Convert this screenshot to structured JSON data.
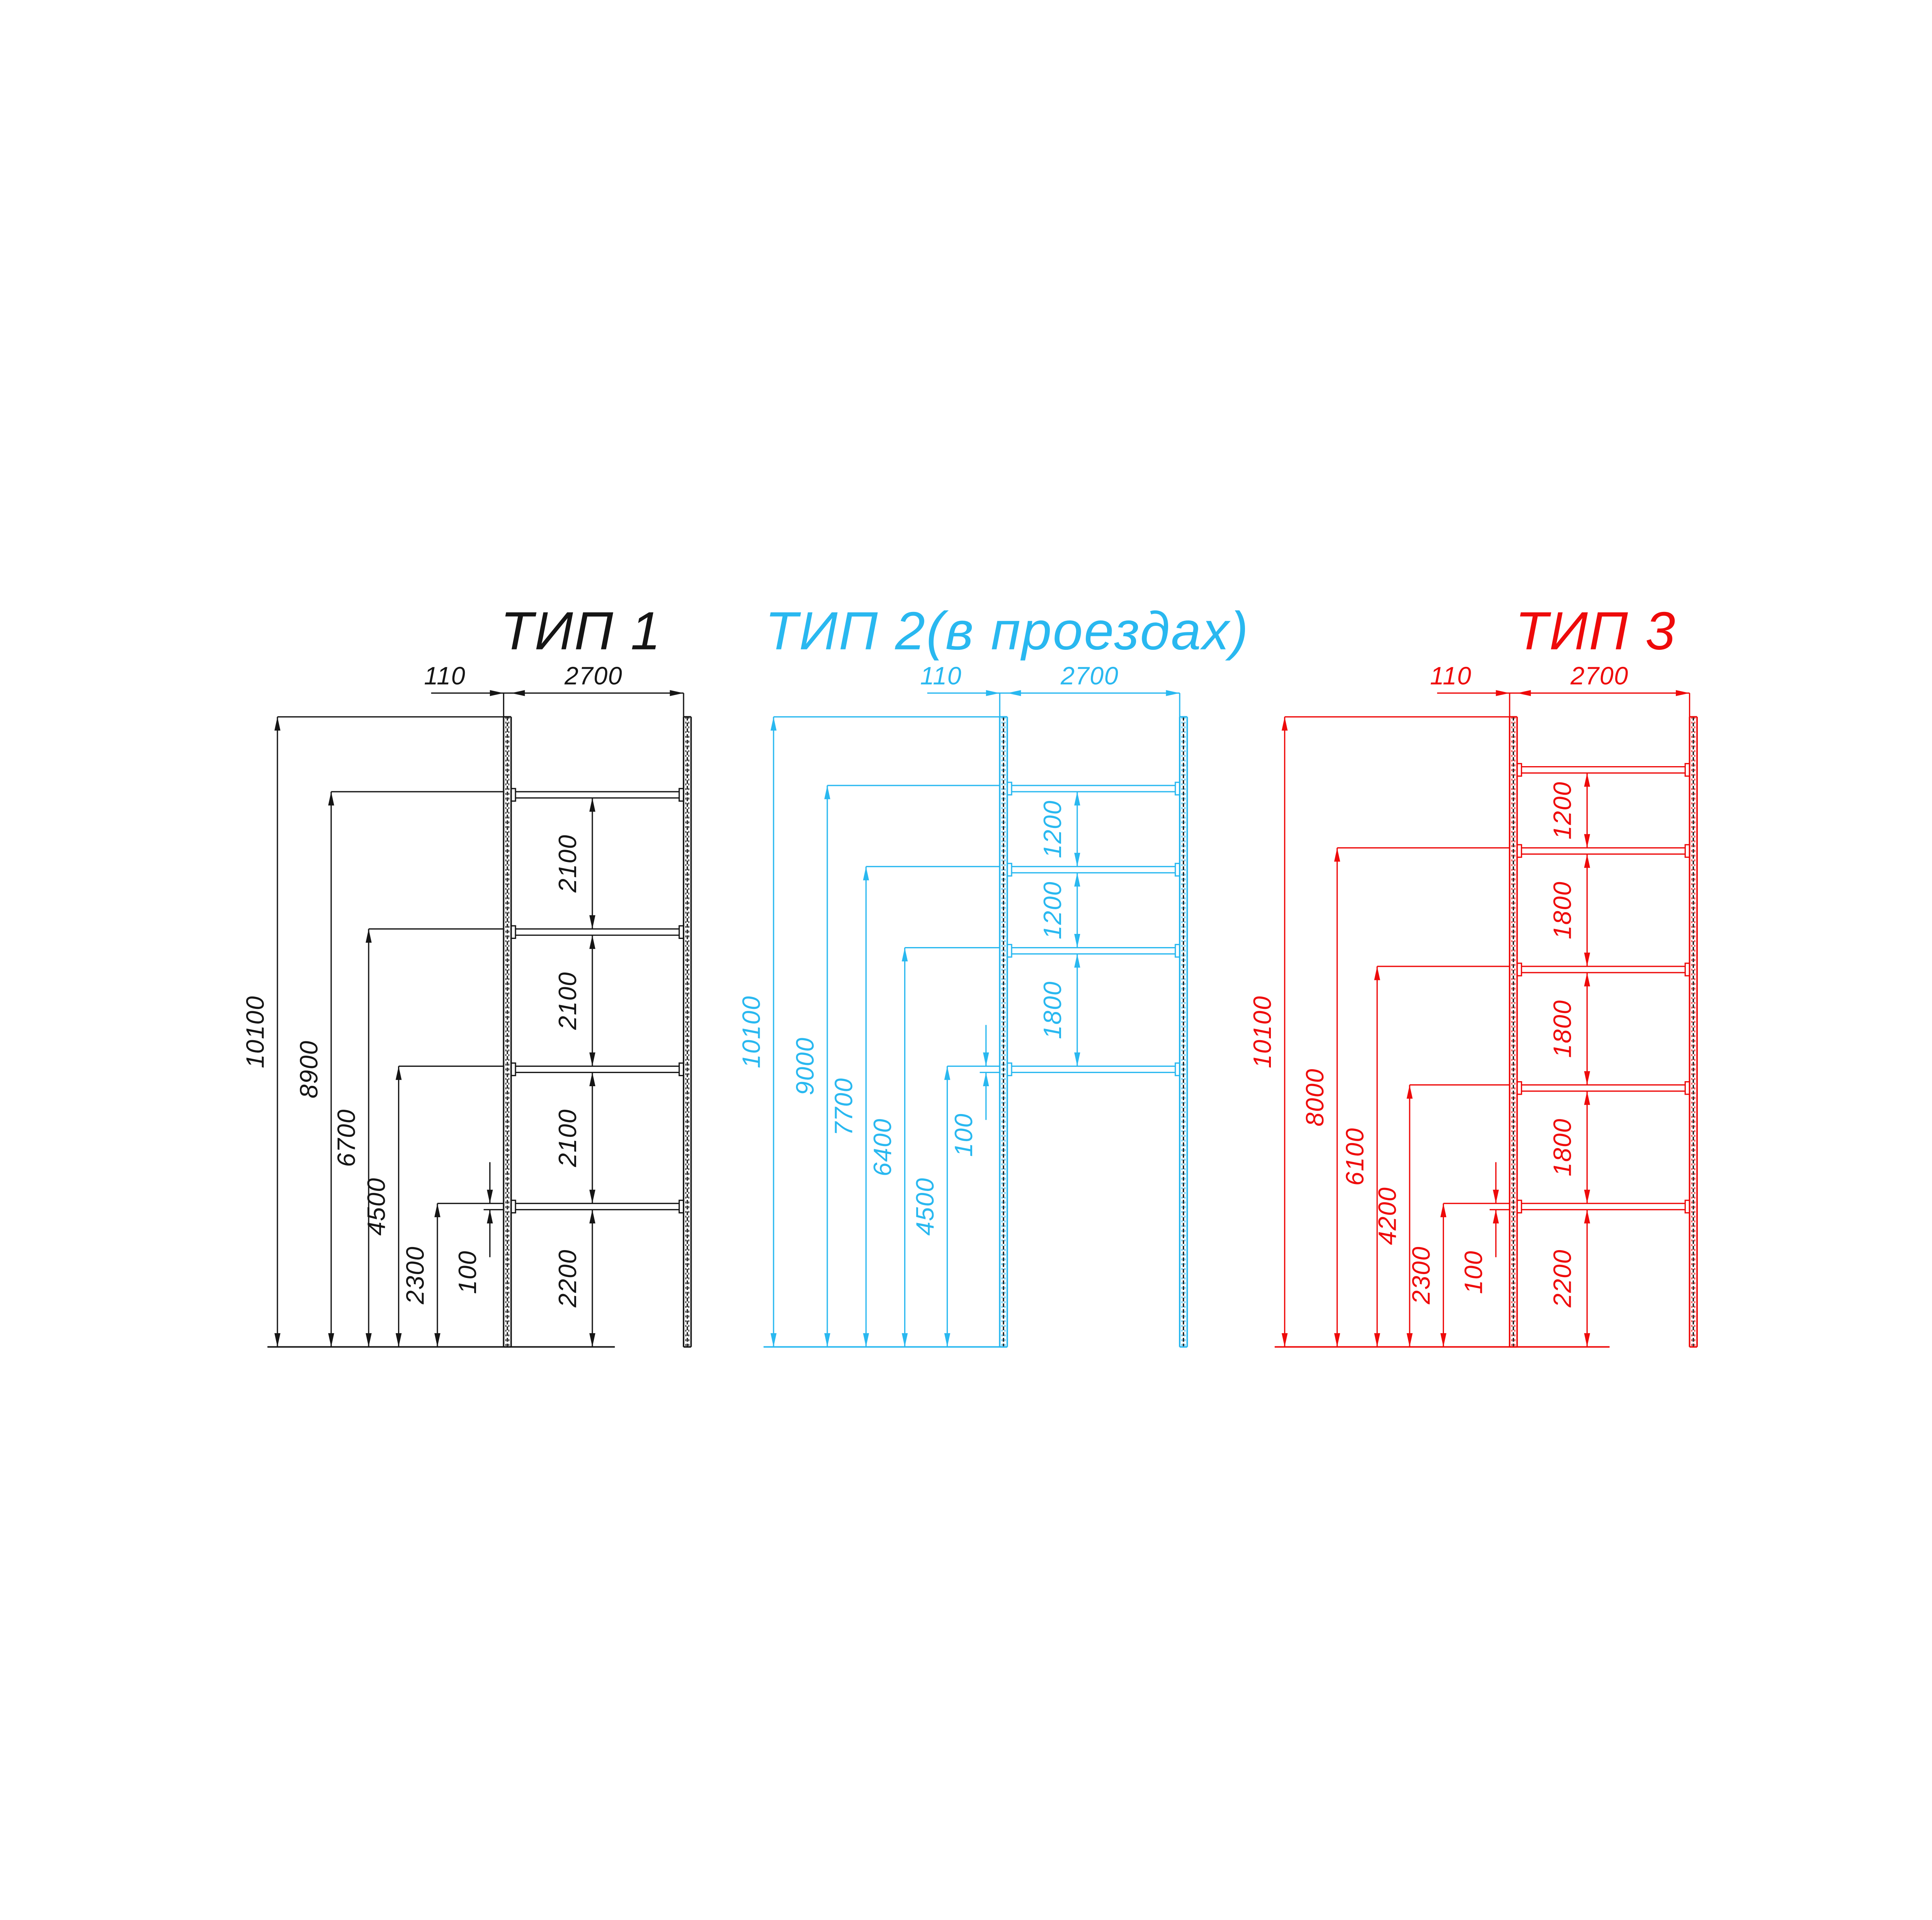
{
  "page": {
    "background": "#ffffff"
  },
  "drawings": [
    {
      "id": "tip1",
      "title": "ТИП 1",
      "accent_color": "#151515",
      "top_dims": {
        "post_width": "110",
        "bay_width": "2700"
      },
      "post_height_mm": 10100,
      "post_width_mm": 110,
      "bay_width_mm": 2700,
      "beam_thickness_mm": 100,
      "beam_levels_mm": [
        8900,
        6700,
        4500,
        2300
      ],
      "left_dims": [
        {
          "label": "10100",
          "mm": 10100
        },
        {
          "label": "8900",
          "mm": 8900
        },
        {
          "label": "6700",
          "mm": 6700
        },
        {
          "label": "4500",
          "mm": 4500
        },
        {
          "label": "2300",
          "mm": 2300
        }
      ],
      "right_dims": [
        {
          "label": "2100",
          "top_mm": 8800,
          "bottom_mm": 6700
        },
        {
          "label": "2100",
          "top_mm": 6600,
          "bottom_mm": 4500
        },
        {
          "label": "2100",
          "top_mm": 4400,
          "bottom_mm": 2300
        },
        {
          "label": "2200",
          "top_mm": 2200,
          "bottom_mm": 0
        }
      ],
      "beam_thickness_dim": {
        "label": "100",
        "at_level_mm": 2300
      }
    },
    {
      "id": "tip2",
      "title": "ТИП 2(в проездах)",
      "accent_color": "#29B8F0",
      "top_dims": {
        "post_width": "110",
        "bay_width": "2700"
      },
      "post_height_mm": 10100,
      "post_width_mm": 110,
      "bay_width_mm": 2700,
      "beam_thickness_mm": 100,
      "beam_levels_mm": [
        9000,
        7700,
        6400,
        4500
      ],
      "left_dims": [
        {
          "label": "10100",
          "mm": 10100
        },
        {
          "label": "9000",
          "mm": 9000
        },
        {
          "label": "7700",
          "mm": 7700
        },
        {
          "label": "6400",
          "mm": 6400
        },
        {
          "label": "4500",
          "mm": 4500
        }
      ],
      "right_dims": [
        {
          "label": "1200",
          "top_mm": 8900,
          "bottom_mm": 7700
        },
        {
          "label": "1200",
          "top_mm": 7600,
          "bottom_mm": 6400
        },
        {
          "label": "1800",
          "top_mm": 6300,
          "bottom_mm": 4500
        }
      ],
      "beam_thickness_dim": {
        "label": "100",
        "at_level_mm": 4500
      }
    },
    {
      "id": "tip3",
      "title": "ТИП 3",
      "accent_color": "#EE0A0A",
      "top_dims": {
        "post_width": "110",
        "bay_width": "2700"
      },
      "post_height_mm": 10100,
      "post_width_mm": 110,
      "bay_width_mm": 2700,
      "beam_thickness_mm": 100,
      "beam_levels_mm": [
        9300,
        8000,
        6100,
        4200,
        2300
      ],
      "left_dims": [
        {
          "label": "10100",
          "mm": 10100
        },
        {
          "label": "8000",
          "mm": 8000
        },
        {
          "label": "6100",
          "mm": 6100
        },
        {
          "label": "4200",
          "mm": 4200
        },
        {
          "label": "2300",
          "mm": 2300
        }
      ],
      "right_dims": [
        {
          "label": "1200",
          "top_mm": 9200,
          "bottom_mm": 8000
        },
        {
          "label": "1800",
          "top_mm": 7900,
          "bottom_mm": 6100
        },
        {
          "label": "1800",
          "top_mm": 6000,
          "bottom_mm": 4200
        },
        {
          "label": "1800",
          "top_mm": 4100,
          "bottom_mm": 2300
        },
        {
          "label": "2200",
          "top_mm": 2200,
          "bottom_mm": 0
        }
      ],
      "beam_thickness_dim": {
        "label": "100",
        "at_level_mm": 2300
      }
    }
  ]
}
